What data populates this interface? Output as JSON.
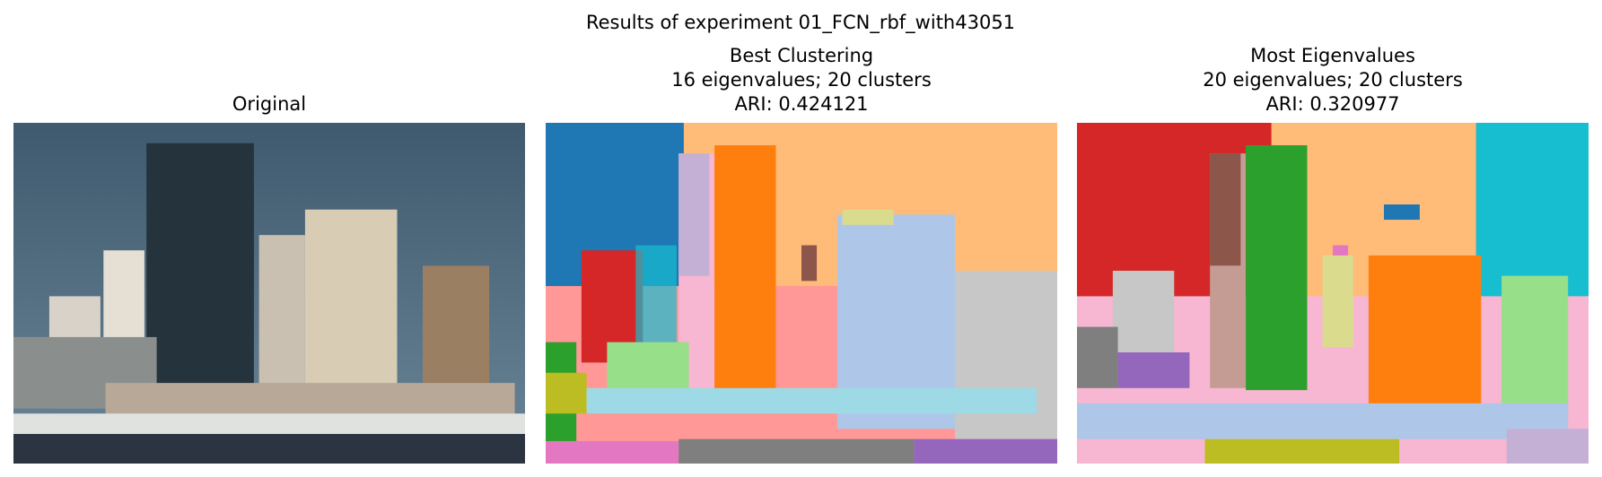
{
  "title": "Results of experiment 01_FCN_rbf_with43051",
  "panels": [
    {
      "title_lines": [
        "Original"
      ]
    },
    {
      "title_lines": [
        "Best Clustering",
        "16 eigenvalues; 20 clusters",
        "ARI: 0.424121"
      ]
    },
    {
      "title_lines": [
        "Most Eigenvalues",
        "20 eigenvalues; 20 clusters",
        "ARI: 0.320977"
      ]
    }
  ]
}
